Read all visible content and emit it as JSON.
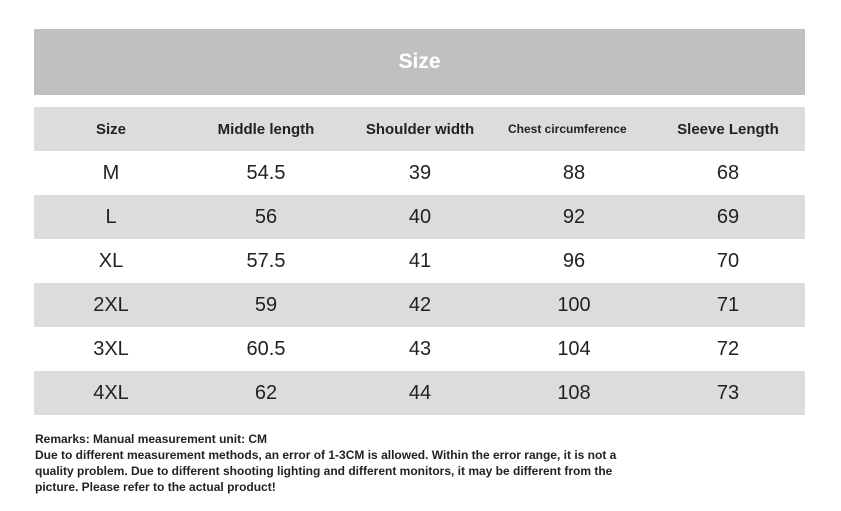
{
  "title": "Size",
  "columns": [
    "Size",
    "Middle length",
    "Shoulder width",
    "Chest circumference",
    "Sleeve Length"
  ],
  "rows": [
    [
      "M",
      "54.5",
      "39",
      "88",
      "68"
    ],
    [
      "L",
      "56",
      "40",
      "92",
      "69"
    ],
    [
      "XL",
      "57.5",
      "41",
      "96",
      "70"
    ],
    [
      "2XL",
      "59",
      "42",
      "100",
      "71"
    ],
    [
      "3XL",
      "60.5",
      "43",
      "104",
      "72"
    ],
    [
      "4XL",
      "62",
      "44",
      "108",
      "73"
    ]
  ],
  "remarks": {
    "heading": "Remarks: Manual measurement unit: CM",
    "body": "Due to different measurement methods, an error of 1-3CM is allowed. Within the error range, it is not a quality problem. Due to different shooting lighting and different monitors, it may be different from the picture. Please refer to the actual product!"
  },
  "colors": {
    "title_bg": "#c0c0c0",
    "header_bg": "#dcdcdc",
    "stripe_bg": "#dcdcdc"
  }
}
